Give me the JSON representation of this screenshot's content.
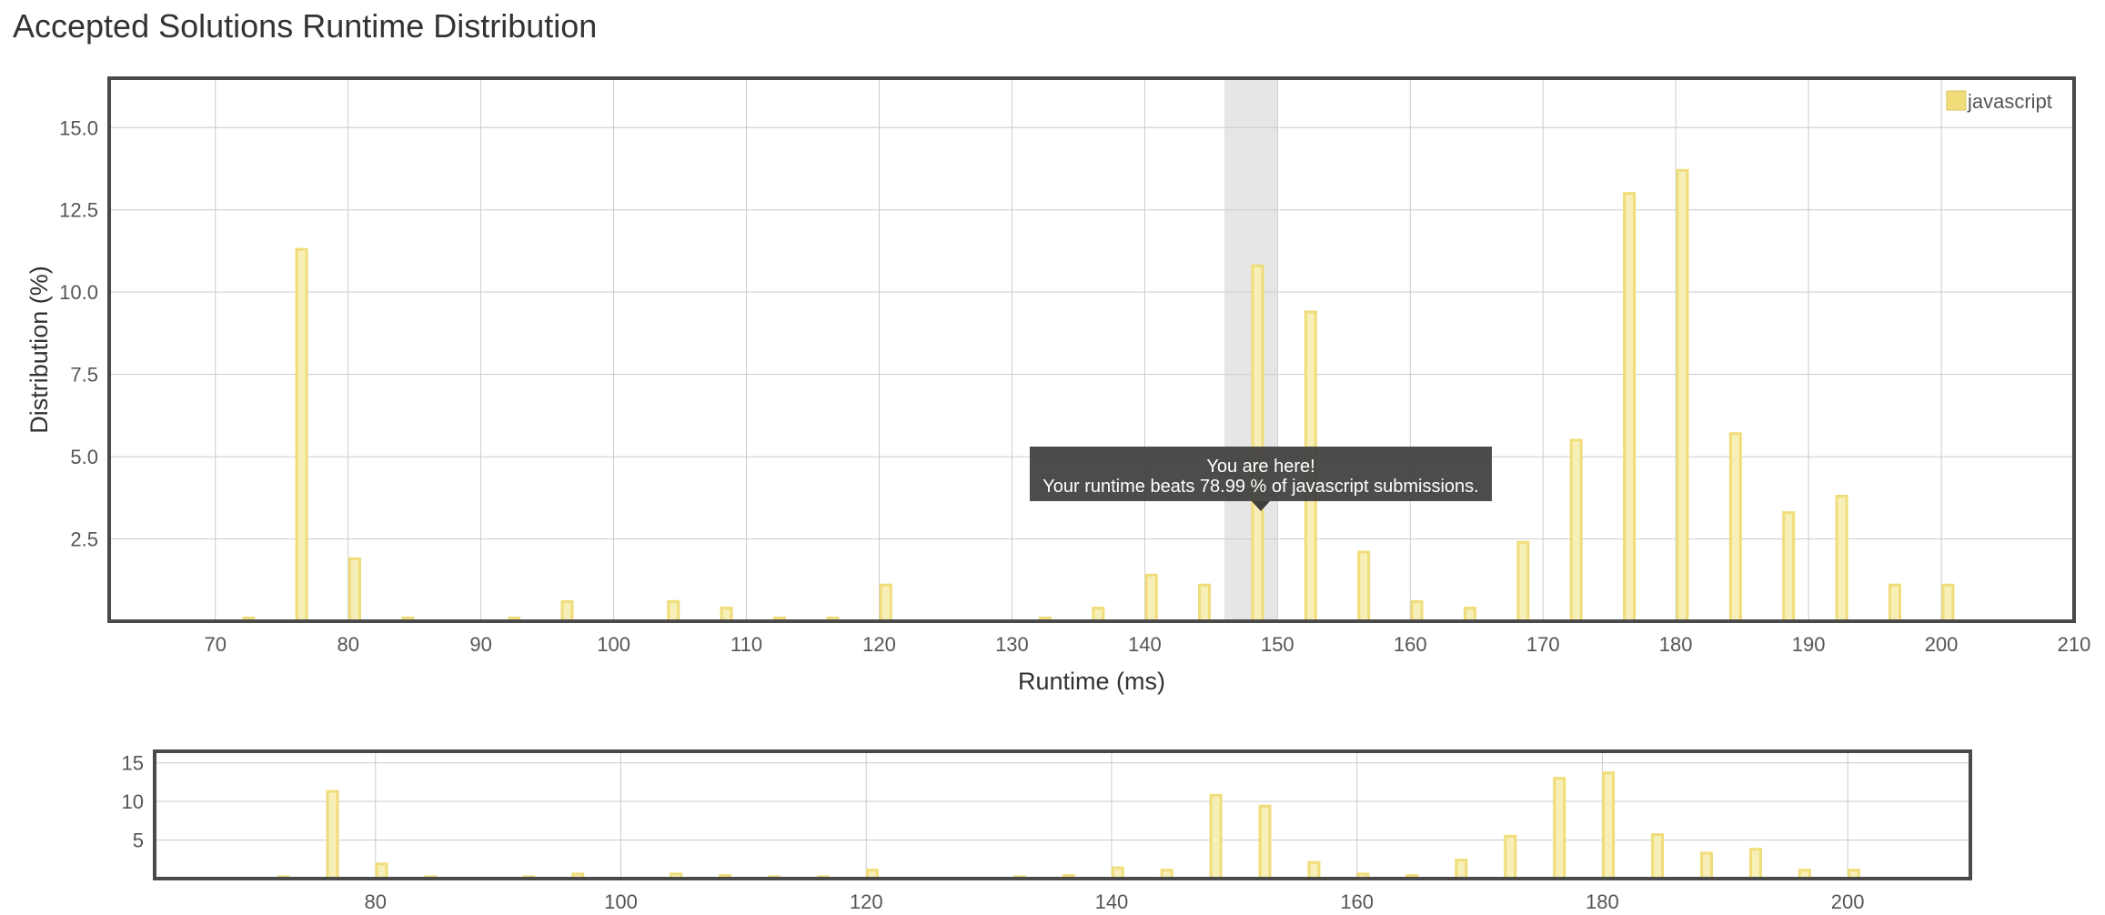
{
  "page": {
    "title": "Accepted Solutions Runtime Distribution"
  },
  "chart_data": {
    "type": "bar",
    "title": "",
    "xlabel": "Runtime (ms)",
    "ylabel": "Distribution (%)",
    "xlim": [
      62,
      210
    ],
    "ylim": [
      0,
      16.5
    ],
    "x_ticks": [
      70,
      80,
      90,
      100,
      110,
      120,
      130,
      140,
      150,
      160,
      170,
      180,
      190,
      200,
      210
    ],
    "y_ticks": [
      2.5,
      5.0,
      7.5,
      10.0,
      12.5,
      15.0
    ],
    "grid": true,
    "legend_position": "top-right",
    "highlight_range": [
      146,
      150
    ],
    "series": [
      {
        "name": "javascript",
        "color": "#f0dd7a",
        "x": [
          72.5,
          76.5,
          80.5,
          84.5,
          92.5,
          96.5,
          104.5,
          108.5,
          112.5,
          116.5,
          120.5,
          132.5,
          136.5,
          140.5,
          144.5,
          148.5,
          152.5,
          156.5,
          160.5,
          164.5,
          168.5,
          172.5,
          176.5,
          180.5,
          184.5,
          188.5,
          192.5,
          196.5,
          200.5
        ],
        "values": [
          0.1,
          11.3,
          1.9,
          0.1,
          0.1,
          0.6,
          0.6,
          0.4,
          0.1,
          0.1,
          1.1,
          0.1,
          0.4,
          1.4,
          1.1,
          10.8,
          9.4,
          2.1,
          0.6,
          0.4,
          2.4,
          5.5,
          13.0,
          13.7,
          5.7,
          3.3,
          3.8,
          1.1,
          1.1
        ]
      }
    ],
    "tooltip": {
      "line1": "You are here!",
      "line2": "Your runtime beats 78.99 % of javascript submissions."
    },
    "navigator": {
      "xlim": [
        62,
        210
      ],
      "ylim": [
        0,
        16.5
      ],
      "x_ticks": [
        80,
        100,
        120,
        140,
        160,
        180,
        200
      ],
      "y_ticks": [
        5,
        10,
        15
      ]
    }
  }
}
